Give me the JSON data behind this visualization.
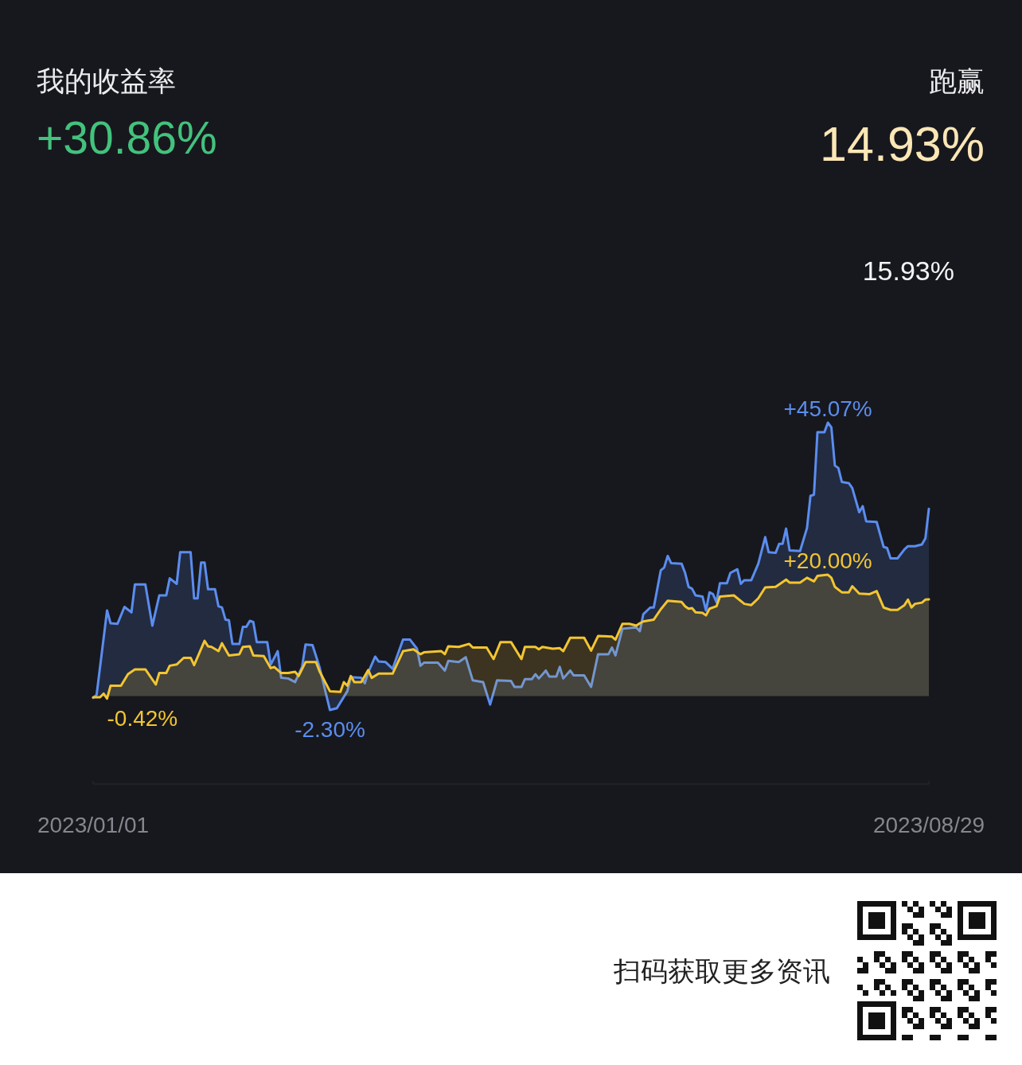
{
  "chart_data": {
    "type": "area",
    "title": "我的收益率",
    "subtitle": "+30.86%",
    "annotations": [
      "跑赢",
      "14.93%",
      "15.93%",
      "扫码获取更多资讯"
    ],
    "xlim": [
      "2023-01-01",
      "2023-08-29"
    ],
    "xticks": [
      {
        "value": "2023-01-01",
        "label": "2023/01/01"
      },
      {
        "value": "2023-08-29",
        "label": "2023/08/29"
      }
    ],
    "tick_labels": "x",
    "series": [
      {
        "color": "#5b8def",
        "x": [
          "2023-01-01",
          "2023-01-02",
          "2023-01-05",
          "2023-01-06",
          "2023-01-08",
          "2023-01-10",
          "2023-01-12",
          "2023-01-13",
          "2023-01-16",
          "2023-01-18",
          "2023-01-20",
          "2023-01-22",
          "2023-01-23",
          "2023-01-25",
          "2023-01-26",
          "2023-01-29",
          "2023-01-30",
          "2023-01-31",
          "2023-02-01",
          "2023-02-02",
          "2023-02-03",
          "2023-02-05",
          "2023-02-06",
          "2023-02-07",
          "2023-02-08",
          "2023-02-09",
          "2023-02-10",
          "2023-02-12",
          "2023-02-13",
          "2023-02-14",
          "2023-02-15",
          "2023-02-16",
          "2023-02-17",
          "2023-02-20",
          "2023-02-21",
          "2023-02-23",
          "2023-02-24",
          "2023-02-26",
          "2023-02-28",
          "2023-03-02",
          "2023-03-03",
          "2023-03-05",
          "2023-03-07",
          "2023-03-10",
          "2023-03-12",
          "2023-03-15",
          "2023-03-16",
          "2023-03-19",
          "2023-03-20",
          "2023-03-21",
          "2023-03-23",
          "2023-03-24",
          "2023-03-26",
          "2023-03-28",
          "2023-03-31",
          "2023-04-02",
          "2023-04-04",
          "2023-04-05",
          "2023-04-06",
          "2023-04-10",
          "2023-04-12",
          "2023-04-13",
          "2023-04-16",
          "2023-04-18",
          "2023-04-20",
          "2023-04-23",
          "2023-04-25",
          "2023-04-27",
          "2023-05-01",
          "2023-05-02",
          "2023-05-04",
          "2023-05-05",
          "2023-05-07",
          "2023-05-08",
          "2023-05-09",
          "2023-05-11",
          "2023-05-12",
          "2023-05-14",
          "2023-05-15",
          "2023-05-16",
          "2023-05-18",
          "2023-05-19",
          "2023-05-22",
          "2023-05-24",
          "2023-05-26",
          "2023-05-29",
          "2023-05-30",
          "2023-05-31",
          "2023-06-02",
          "2023-06-06",
          "2023-06-07",
          "2023-06-08",
          "2023-06-10",
          "2023-06-11",
          "2023-06-13",
          "2023-06-14",
          "2023-06-15",
          "2023-06-16",
          "2023-06-19",
          "2023-06-20",
          "2023-06-21",
          "2023-06-22",
          "2023-06-23",
          "2023-06-25",
          "2023-06-26",
          "2023-06-27",
          "2023-06-28",
          "2023-06-29",
          "2023-06-30",
          "2023-07-02",
          "2023-07-03",
          "2023-07-05",
          "2023-07-06",
          "2023-07-07",
          "2023-07-09",
          "2023-07-11",
          "2023-07-13",
          "2023-07-14",
          "2023-07-16",
          "2023-07-17",
          "2023-07-18",
          "2023-07-19",
          "2023-07-20",
          "2023-07-23",
          "2023-07-25",
          "2023-07-26",
          "2023-07-27",
          "2023-07-28",
          "2023-07-30",
          "2023-07-31",
          "2023-08-01",
          "2023-08-02",
          "2023-08-03",
          "2023-08-04",
          "2023-08-06",
          "2023-08-07",
          "2023-08-09",
          "2023-08-10",
          "2023-08-11",
          "2023-08-14",
          "2023-08-16",
          "2023-08-17",
          "2023-08-18",
          "2023-08-20",
          "2023-08-22",
          "2023-08-23",
          "2023-08-25",
          "2023-08-27",
          "2023-08-28",
          "2023-08-29"
        ],
        "values": [
          -0.3,
          0.2,
          14.1,
          12.0,
          11.9,
          14.7,
          13.8,
          18.4,
          18.4,
          11.6,
          16.6,
          16.6,
          19.4,
          18.5,
          23.7,
          23.7,
          16.1,
          16.1,
          22.0,
          22.0,
          17.6,
          17.6,
          14.8,
          14.6,
          12.6,
          12.5,
          8.6,
          8.6,
          11.4,
          11.4,
          12.4,
          12.2,
          8.9,
          8.9,
          5.2,
          7.4,
          3.0,
          2.9,
          2.3,
          4.8,
          8.5,
          8.4,
          4.8,
          -2.3,
          -2.0,
          0.8,
          3.1,
          3.0,
          2.1,
          3.9,
          6.5,
          5.7,
          5.6,
          4.5,
          9.3,
          9.3,
          7.8,
          5.0,
          5.5,
          5.5,
          4.2,
          5.8,
          5.6,
          6.4,
          2.6,
          2.3,
          -1.4,
          2.6,
          2.5,
          1.5,
          1.5,
          2.8,
          2.8,
          3.6,
          2.9,
          4.2,
          3.2,
          3.2,
          4.8,
          2.9,
          4.2,
          3.4,
          3.4,
          1.5,
          6.9,
          6.9,
          8.0,
          6.7,
          11.1,
          11.3,
          10.7,
          13.5,
          14.6,
          14.6,
          20.7,
          21.2,
          23.1,
          21.9,
          21.8,
          20.3,
          18.0,
          17.7,
          16.6,
          16.4,
          14.1,
          17.1,
          16.8,
          15.5,
          18.6,
          18.6,
          20.3,
          20.9,
          18.5,
          19.1,
          19.1,
          21.8,
          26.2,
          23.7,
          23.6,
          25.1,
          25.1,
          27.6,
          24.0,
          23.9,
          27.7,
          33.0,
          33.2,
          43.5,
          43.5,
          45.07,
          44.3,
          38.0,
          37.6,
          35.3,
          35.1,
          34.3,
          30.3,
          31.3,
          28.8,
          28.7,
          24.6,
          24.4,
          22.7,
          22.7,
          24.2,
          24.7,
          24.7,
          25.0,
          26.0,
          30.86
        ],
        "value_labels": [
          null,
          null,
          null,
          null,
          null,
          null,
          null,
          null,
          null,
          null,
          null,
          null,
          null,
          null,
          null,
          null,
          null,
          null,
          null,
          null,
          null,
          null,
          null,
          null,
          null,
          null,
          null,
          null,
          null,
          null,
          null,
          null,
          null,
          null,
          null,
          null,
          null,
          null,
          null,
          null,
          null,
          null,
          null,
          "-2.30%",
          null,
          null,
          null,
          null,
          null,
          null,
          null,
          null,
          null,
          null,
          null,
          null,
          null,
          null,
          null,
          null,
          null,
          null,
          null,
          null,
          null,
          null,
          null,
          null,
          null,
          null,
          null,
          null,
          null,
          null,
          null,
          null,
          null,
          null,
          null,
          null,
          null,
          null,
          null,
          null,
          null,
          null,
          null,
          null,
          null,
          null,
          null,
          null,
          null,
          null,
          null,
          null,
          null,
          null,
          null,
          null,
          null,
          null,
          null,
          null,
          null,
          null,
          null,
          null,
          null,
          null,
          null,
          null,
          null,
          null,
          null,
          null,
          null,
          null,
          null,
          null,
          null,
          null,
          null,
          null,
          null,
          null,
          null,
          null,
          null,
          "+45.07%",
          null,
          null,
          null,
          null,
          null,
          null,
          null,
          null,
          null,
          null,
          null,
          null,
          null,
          null,
          null,
          null,
          null,
          null,
          null,
          null
        ]
      },
      {
        "color": "#f3c531",
        "x": [
          "2023-01-01",
          "2023-01-03",
          "2023-01-04",
          "2023-01-05",
          "2023-01-06",
          "2023-01-09",
          "2023-01-11",
          "2023-01-13",
          "2023-01-16",
          "2023-01-19",
          "2023-01-20",
          "2023-01-22",
          "2023-01-23",
          "2023-01-25",
          "2023-01-27",
          "2023-01-29",
          "2023-01-30",
          "2023-02-02",
          "2023-02-03",
          "2023-02-04",
          "2023-02-06",
          "2023-02-07",
          "2023-02-09",
          "2023-02-12",
          "2023-02-13",
          "2023-02-15",
          "2023-02-16",
          "2023-02-19",
          "2023-02-21",
          "2023-02-22",
          "2023-02-24",
          "2023-02-26",
          "2023-02-28",
          "2023-03-01",
          "2023-03-03",
          "2023-03-06",
          "2023-03-07",
          "2023-03-10",
          "2023-03-13",
          "2023-03-14",
          "2023-03-15",
          "2023-03-16",
          "2023-03-17",
          "2023-03-19",
          "2023-03-21",
          "2023-03-22",
          "2023-03-24",
          "2023-03-28",
          "2023-03-31",
          "2023-04-03",
          "2023-04-05",
          "2023-04-06",
          "2023-04-11",
          "2023-04-12",
          "2023-04-13",
          "2023-04-16",
          "2023-04-19",
          "2023-04-20",
          "2023-04-24",
          "2023-04-26",
          "2023-04-28",
          "2023-05-01",
          "2023-05-04",
          "2023-05-05",
          "2023-05-08",
          "2023-05-09",
          "2023-05-10",
          "2023-05-13",
          "2023-05-15",
          "2023-05-16",
          "2023-05-18",
          "2023-05-22",
          "2023-05-24",
          "2023-05-26",
          "2023-05-30",
          "2023-05-31",
          "2023-06-02",
          "2023-06-04",
          "2023-06-06",
          "2023-06-07",
          "2023-06-08",
          "2023-06-11",
          "2023-06-13",
          "2023-06-15",
          "2023-06-17",
          "2023-06-19",
          "2023-06-20",
          "2023-06-21",
          "2023-06-22",
          "2023-06-23",
          "2023-06-25",
          "2023-06-26",
          "2023-06-27",
          "2023-06-29",
          "2023-06-30",
          "2023-07-04",
          "2023-07-07",
          "2023-07-09",
          "2023-07-11",
          "2023-07-13",
          "2023-07-16",
          "2023-07-19",
          "2023-07-20",
          "2023-07-23",
          "2023-07-25",
          "2023-07-27",
          "2023-07-28",
          "2023-07-31",
          "2023-08-01",
          "2023-08-02",
          "2023-08-04",
          "2023-08-06",
          "2023-08-07",
          "2023-08-09",
          "2023-08-12",
          "2023-08-14",
          "2023-08-16",
          "2023-08-18",
          "2023-08-20",
          "2023-08-22",
          "2023-08-23",
          "2023-08-24",
          "2023-08-25",
          "2023-08-27",
          "2023-08-28",
          "2023-08-29"
        ],
        "values": [
          -0.2,
          -0.2,
          0.4,
          -0.42,
          1.7,
          1.7,
          3.6,
          4.4,
          4.4,
          1.9,
          3.8,
          3.8,
          5.0,
          5.2,
          6.3,
          6.3,
          5.1,
          9.1,
          8.2,
          8.1,
          7.4,
          8.7,
          6.7,
          6.9,
          8.1,
          8.2,
          6.7,
          6.6,
          4.6,
          4.8,
          3.8,
          3.8,
          4.0,
          3.3,
          5.6,
          5.6,
          4.1,
          0.8,
          0.7,
          2.3,
          1.7,
          3.3,
          2.3,
          2.3,
          4.3,
          3.0,
          3.7,
          3.7,
          7.4,
          7.7,
          6.9,
          7.2,
          7.4,
          6.9,
          8.2,
          8.1,
          8.6,
          8.0,
          8.0,
          6.1,
          8.9,
          8.9,
          6.1,
          8.1,
          8.1,
          7.7,
          8.1,
          7.8,
          7.9,
          7.4,
          9.6,
          9.6,
          7.5,
          9.9,
          9.8,
          9.3,
          11.9,
          11.9,
          11.6,
          12.0,
          12.3,
          12.6,
          14.3,
          15.7,
          15.6,
          15.5,
          14.8,
          14.4,
          14.5,
          13.8,
          13.7,
          13.3,
          14.4,
          14.8,
          16.4,
          16.6,
          15.2,
          15.0,
          16.1,
          17.9,
          18.0,
          19.2,
          18.7,
          18.7,
          19.5,
          18.9,
          19.8,
          20.0,
          19.5,
          18.0,
          17.1,
          17.1,
          18.1,
          16.9,
          16.8,
          17.3,
          14.6,
          14.2,
          14.2,
          15.0,
          15.9,
          14.6,
          15.2,
          15.4,
          15.9,
          15.93
        ],
        "value_labels": [
          null,
          null,
          null,
          "-0.42%",
          null,
          null,
          null,
          null,
          null,
          null,
          null,
          null,
          null,
          null,
          null,
          null,
          null,
          null,
          null,
          null,
          null,
          null,
          null,
          null,
          null,
          null,
          null,
          null,
          null,
          null,
          null,
          null,
          null,
          null,
          null,
          null,
          null,
          null,
          null,
          null,
          null,
          null,
          null,
          null,
          null,
          null,
          null,
          null,
          null,
          null,
          null,
          null,
          null,
          null,
          null,
          null,
          null,
          null,
          null,
          null,
          null,
          null,
          null,
          null,
          null,
          null,
          null,
          null,
          null,
          null,
          null,
          null,
          null,
          null,
          null,
          null,
          null,
          null,
          null,
          null,
          null,
          null,
          null,
          null,
          null,
          null,
          null,
          null,
          null,
          null,
          null,
          null,
          null,
          null,
          null,
          null,
          null,
          null,
          null,
          null,
          null,
          null,
          null,
          null,
          null,
          null,
          null,
          "+20.00%",
          null,
          null,
          null,
          null,
          null,
          null,
          null,
          null,
          null,
          null,
          null,
          null,
          null,
          null,
          null,
          null,
          null,
          null
        ]
      }
    ]
  }
}
